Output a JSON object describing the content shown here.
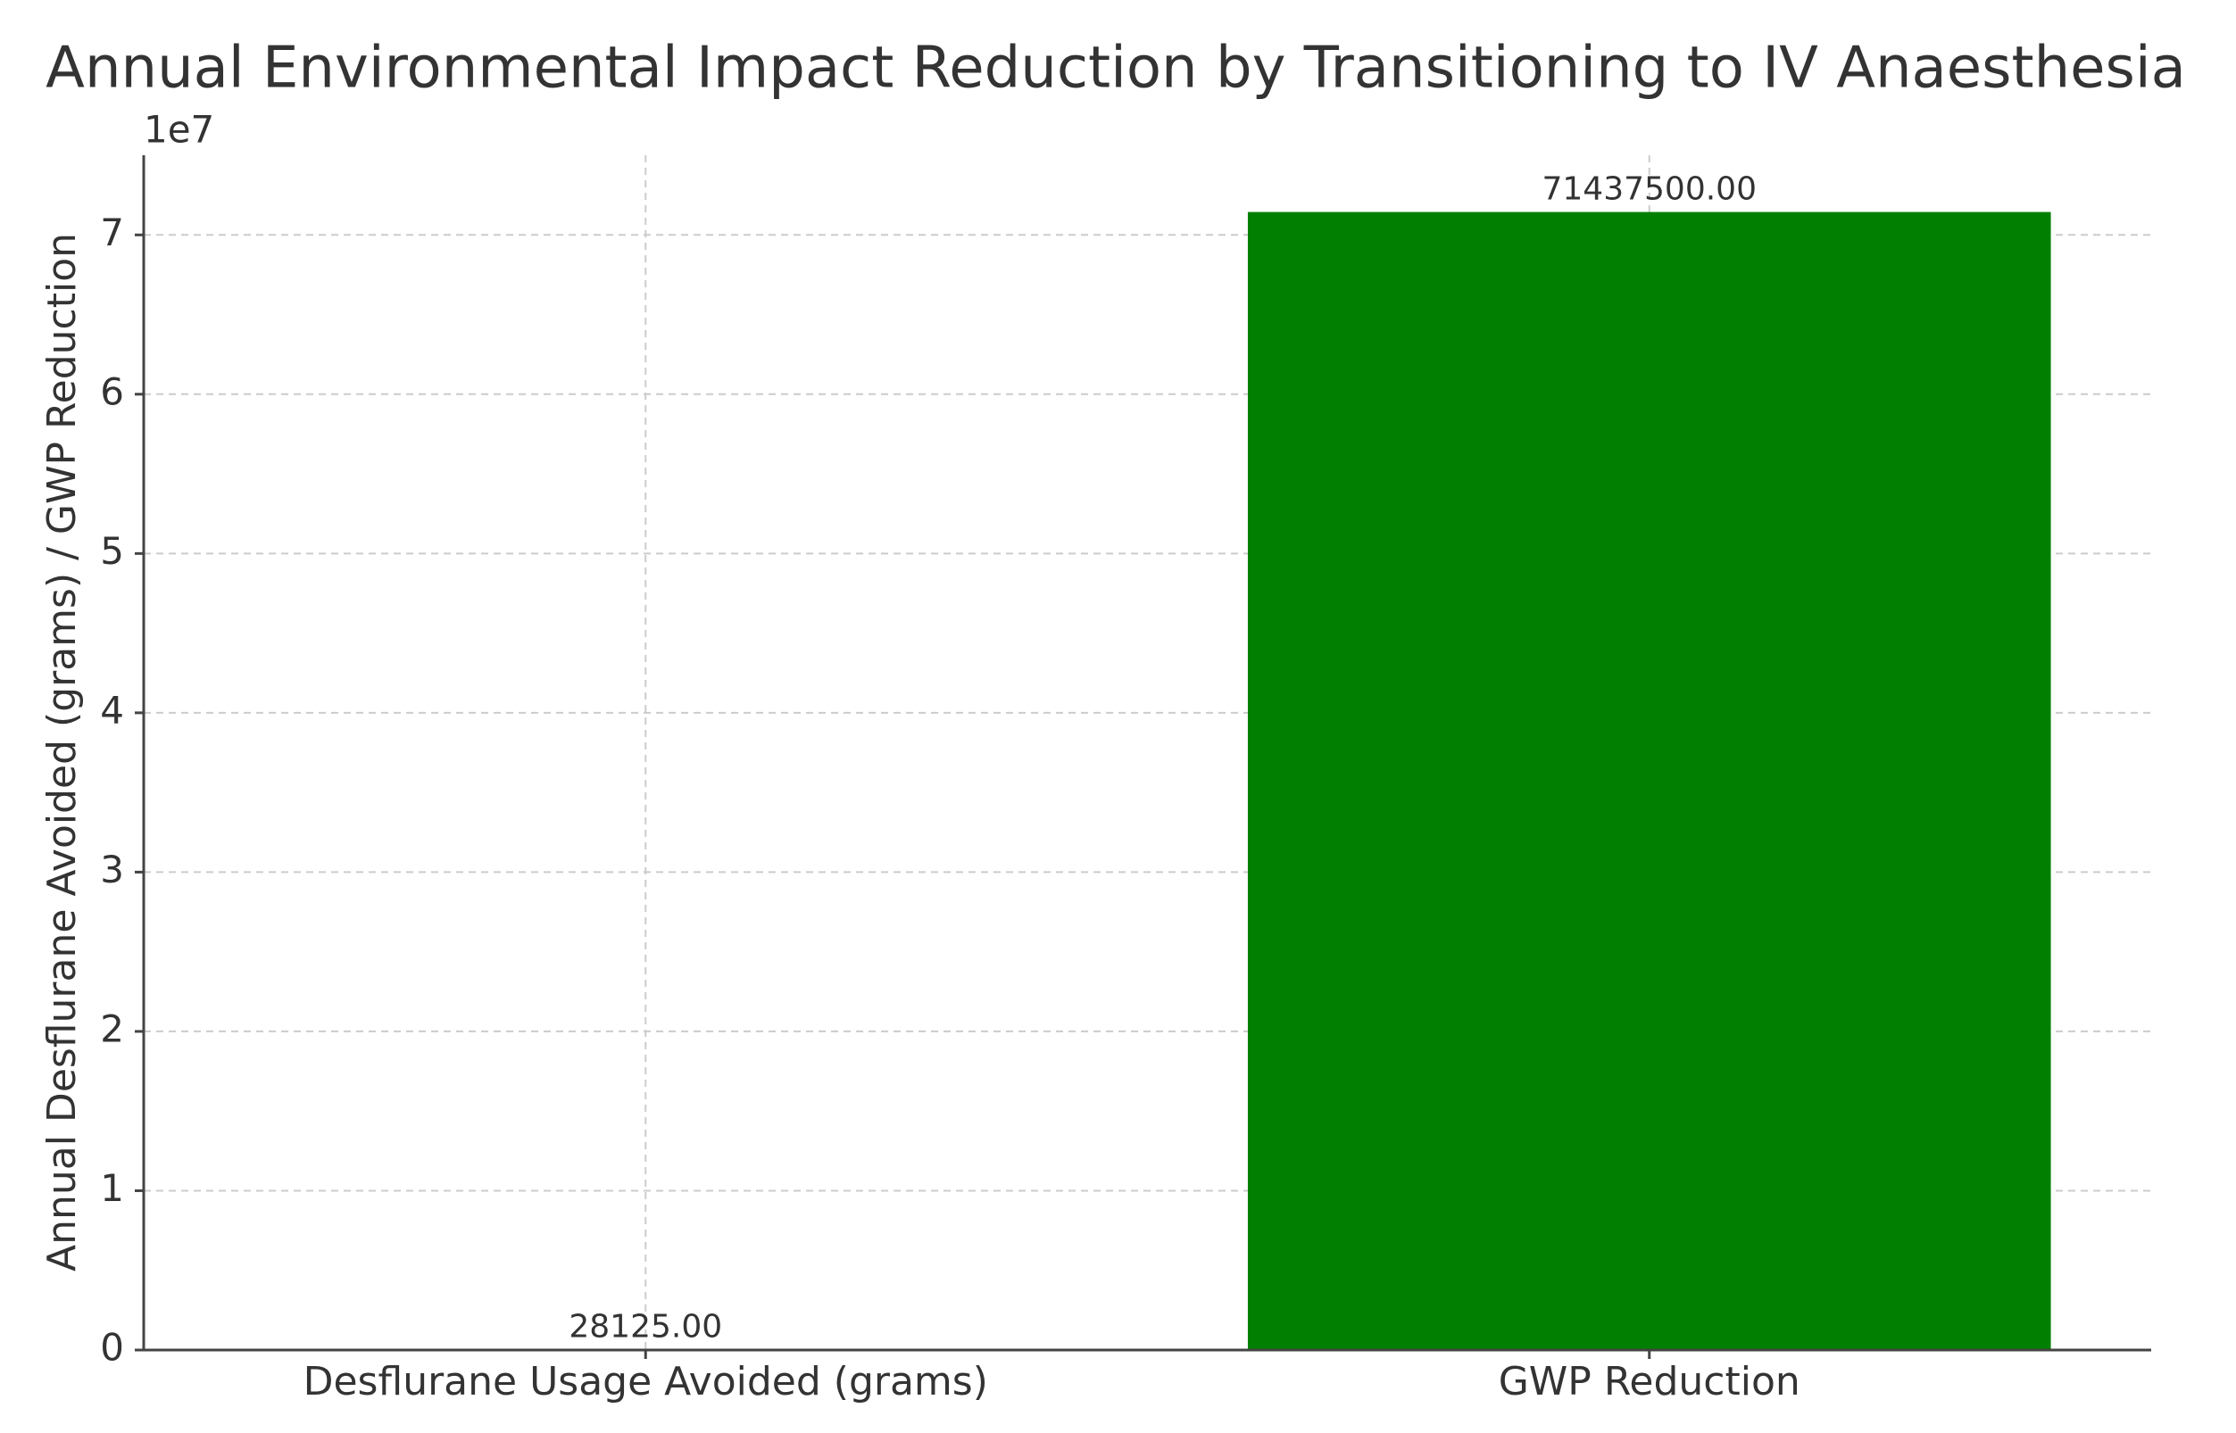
{
  "chart_data": {
    "type": "bar",
    "title": "Annual Environmental Impact Reduction by Transitioning to IV Anaesthesia",
    "ylabel": "Annual Desflurane Avoided (grams) / GWP Reduction",
    "categories": [
      "Desflurane Usage Avoided (grams)",
      "GWP Reduction"
    ],
    "values": [
      28125,
      71437500
    ],
    "value_labels": [
      "28125.00",
      "71437500.00"
    ],
    "colors": [
      "#1f77b4",
      "#007f00"
    ],
    "ylim": [
      0,
      75000000
    ],
    "yticks": [
      0,
      {
        "value": 10000000,
        "label": "1"
      },
      {
        "value": 20000000,
        "label": "2"
      },
      {
        "value": 30000000,
        "label": "3"
      },
      {
        "value": 40000000,
        "label": "4"
      },
      {
        "value": 50000000,
        "label": "5"
      },
      {
        "value": 60000000,
        "label": "6"
      },
      {
        "value": 70000000,
        "label": "7"
      }
    ],
    "y_offset_label": "1e7",
    "grid": true
  }
}
